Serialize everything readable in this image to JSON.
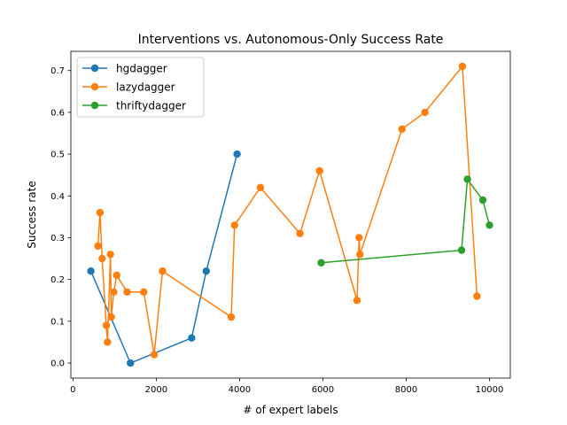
{
  "chart_data": {
    "type": "line",
    "title": "Interventions vs. Autonomous-Only Success Rate",
    "xlabel": "# of expert labels",
    "ylabel": "Success rate",
    "xlim": [
      -50,
      10500
    ],
    "ylim": [
      -0.036,
      0.746
    ],
    "xticks": [
      0,
      2000,
      4000,
      6000,
      8000,
      10000
    ],
    "yticks": [
      0.0,
      0.1,
      0.2,
      0.3,
      0.4,
      0.5,
      0.6,
      0.7
    ],
    "xtick_labels": [
      "0",
      "2000",
      "4000",
      "6000",
      "8000",
      "10000"
    ],
    "ytick_labels": [
      "0.0",
      "0.1",
      "0.2",
      "0.3",
      "0.4",
      "0.5",
      "0.6",
      "0.7"
    ],
    "grid": false,
    "legend_position": "upper-left",
    "series": [
      {
        "name": "hgdagger",
        "color": "#1f77b4",
        "x": [
          430,
          1380,
          2850,
          3200,
          3940
        ],
        "y": [
          0.22,
          0.0,
          0.06,
          0.22,
          0.5
        ]
      },
      {
        "name": "lazydagger",
        "color": "#ff7f0e",
        "x": [
          600,
          650,
          700,
          800,
          830,
          900,
          920,
          980,
          1050,
          1300,
          1700,
          1950,
          2150,
          3800,
          3880,
          4500,
          5450,
          5920,
          6820,
          6870,
          6890,
          7900,
          8450,
          9350,
          9700
        ],
        "y": [
          0.28,
          0.36,
          0.25,
          0.09,
          0.05,
          0.26,
          0.11,
          0.17,
          0.21,
          0.17,
          0.17,
          0.02,
          0.22,
          0.11,
          0.33,
          0.42,
          0.31,
          0.46,
          0.15,
          0.3,
          0.26,
          0.56,
          0.6,
          0.71,
          0.16
        ]
      },
      {
        "name": "thriftydagger",
        "color": "#2ca02c",
        "x": [
          5960,
          9330,
          9470,
          9840,
          10000
        ],
        "y": [
          0.24,
          0.27,
          0.44,
          0.39,
          0.33
        ]
      }
    ]
  }
}
